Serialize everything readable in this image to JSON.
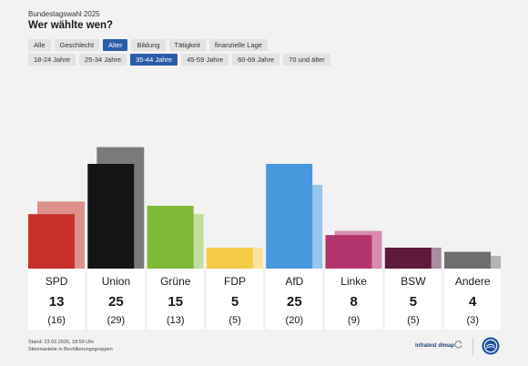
{
  "header": {
    "kicker": "Bundestagswahl 2025",
    "title": "Wer wählte wen?"
  },
  "filters": {
    "categories": [
      {
        "label": "Alle",
        "active": false
      },
      {
        "label": "Geschlecht",
        "active": false
      },
      {
        "label": "Alter",
        "active": true
      },
      {
        "label": "Bildung",
        "active": false
      },
      {
        "label": "Tätigkeit",
        "active": false
      },
      {
        "label": "finanzielle Lage",
        "active": false
      }
    ],
    "age_groups": [
      {
        "label": "18-24 Jahre",
        "active": false
      },
      {
        "label": "25-34 Jahre",
        "active": false
      },
      {
        "label": "35-44 Jahre",
        "active": true
      },
      {
        "label": "45-59 Jahre",
        "active": false
      },
      {
        "label": "60-69 Jahre",
        "active": false
      },
      {
        "label": "70 und älter",
        "active": false
      }
    ]
  },
  "chart_data": {
    "type": "bar",
    "categories": [
      "SPD",
      "Union",
      "Grüne",
      "FDP",
      "AfD",
      "Linke",
      "BSW",
      "Andere"
    ],
    "series": [
      {
        "values": [
          13,
          25,
          15,
          5,
          25,
          8,
          5,
          4
        ]
      },
      {
        "values": [
          16,
          29,
          13,
          5,
          20,
          9,
          5,
          3
        ]
      }
    ],
    "colors": [
      "#c8312b",
      "#141414",
      "#80b93a",
      "#f5cc46",
      "#4698dd",
      "#b2346d",
      "#5e1a3d",
      "#6e6e6e"
    ],
    "previous_colors": [
      "#e0908c",
      "#7a7a7a",
      "#c2dd9d",
      "#f9e3a0",
      "#94c6ee",
      "#d58cb0",
      "#ad8ba0",
      "#b3b3b3"
    ],
    "value_labels": [
      "13",
      "25",
      "15",
      "5",
      "25",
      "8",
      "5",
      "4"
    ],
    "previous_labels": [
      "(16)",
      "(29)",
      "(13)",
      "(5)",
      "(20)",
      "(9)",
      "(5)",
      "(3)"
    ]
  },
  "footer": {
    "stand": "Stand: 23.02.2025, 18:59 Uhr",
    "note": "Stimmanteile in Bevölkerungsgruppen",
    "source": "infratest dimap"
  },
  "icons": {
    "refresh": "refresh-icon",
    "logo": "tagesschau-logo-icon"
  }
}
